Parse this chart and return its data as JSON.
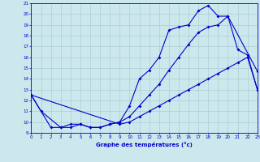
{
  "xlabel": "Graphe des températures (°c)",
  "bg_color": "#cce8ec",
  "line_color": "#0000cc",
  "grid_color": "#a0c8d0",
  "xlim": [
    0,
    23
  ],
  "ylim": [
    9,
    21
  ],
  "xticks": [
    0,
    1,
    2,
    3,
    4,
    5,
    6,
    7,
    8,
    9,
    10,
    11,
    12,
    13,
    14,
    15,
    16,
    17,
    18,
    19,
    20,
    21,
    22,
    23
  ],
  "yticks": [
    9,
    10,
    11,
    12,
    13,
    14,
    15,
    16,
    17,
    18,
    19,
    20,
    21
  ],
  "s1x": [
    0,
    1,
    3,
    4,
    5,
    6,
    7,
    8,
    9,
    10,
    11,
    12,
    13,
    14,
    15,
    16,
    17,
    18,
    19,
    20,
    23
  ],
  "s1y": [
    12.5,
    11.0,
    9.5,
    9.5,
    9.8,
    9.5,
    9.5,
    9.8,
    10.0,
    11.5,
    14.0,
    14.8,
    16.0,
    18.5,
    18.8,
    19.0,
    20.3,
    20.8,
    19.8,
    19.8,
    14.7
  ],
  "s2x": [
    0,
    2,
    3,
    4,
    5,
    6,
    7,
    8,
    9,
    10,
    11,
    12,
    13,
    14,
    15,
    16,
    17,
    18,
    19,
    20,
    21,
    22,
    23
  ],
  "s2y": [
    12.5,
    9.5,
    9.5,
    9.8,
    9.8,
    9.5,
    9.5,
    9.8,
    10.0,
    10.5,
    11.5,
    12.5,
    13.5,
    14.8,
    16.0,
    17.2,
    18.3,
    18.8,
    19.0,
    19.8,
    16.7,
    16.2,
    13.0
  ],
  "s3x": [
    0,
    9,
    10,
    11,
    12,
    13,
    14,
    15,
    16,
    17,
    18,
    19,
    20,
    21,
    22,
    23
  ],
  "s3y": [
    12.5,
    9.8,
    10.0,
    10.5,
    11.0,
    11.5,
    12.0,
    12.5,
    13.0,
    13.5,
    14.0,
    14.5,
    15.0,
    15.5,
    16.0,
    13.0
  ]
}
